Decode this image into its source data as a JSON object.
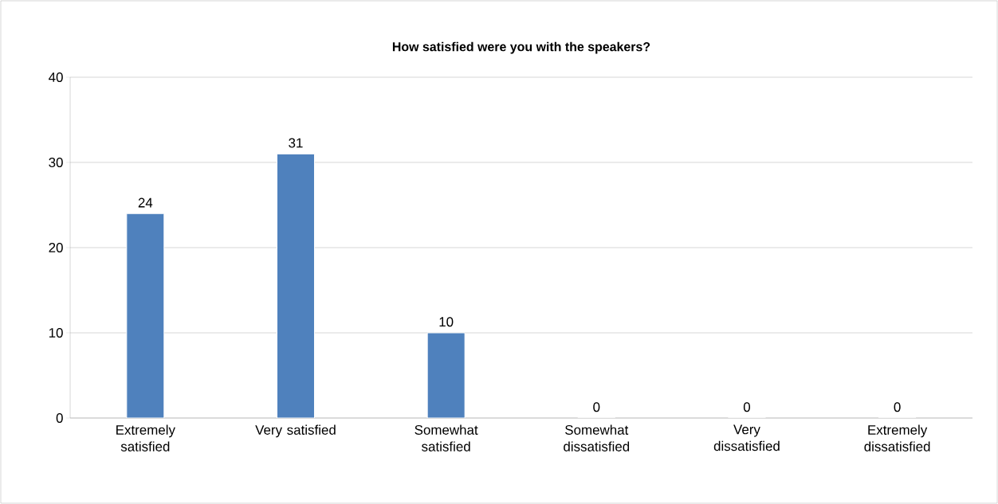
{
  "chart_data": {
    "type": "bar",
    "title": "How satisfied were you with the speakers?",
    "categories": [
      "Extremely satisfied",
      "Very satisfied",
      "Somewhat satisfied",
      "Somewhat dissatisfied",
      "Very dissatisfied",
      "Extremely dissatisfied"
    ],
    "values": [
      24,
      31,
      10,
      0,
      0,
      0
    ],
    "color": "#4f81bd",
    "ylim": [
      0,
      40
    ],
    "yticks": [
      0,
      10,
      20,
      30,
      40
    ],
    "grid": "y",
    "data_labels": true
  }
}
